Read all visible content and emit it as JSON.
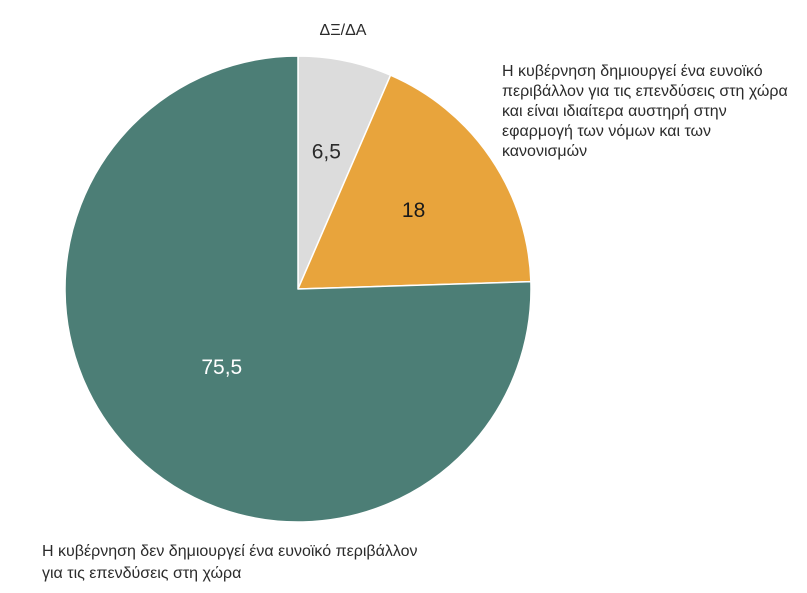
{
  "chart_data": {
    "type": "pie",
    "start_angle": "12 o'clock",
    "direction": "clockwise",
    "slices": [
      {
        "label": "ΔΞ/ΔΑ",
        "value": 6.5,
        "value_label": "6,5",
        "color": "#dcdcdc",
        "value_color": "#2b2b2b"
      },
      {
        "label": "Η κυβέρνηση δημιουργεί ένα ευνοϊκό περιβάλλον για τις επενδύσεις στη χώρα και είναι ιδιαίτερα αυστηρή στην εφαρμογή των νόμων και των κανονισμών",
        "label_lines": [
          "Η κυβέρνηση δημιουργεί ένα ευνοϊκό",
          "περιβάλλον για τις επενδύσεις στη χώρα",
          "και είναι ιδιαίτερα αυστηρή στην",
          "εφαρμογή των νόμων και των",
          "κανονισμών"
        ],
        "value": 18,
        "value_label": "18",
        "color": "#e8a43c",
        "value_color": "#1a1a1a"
      },
      {
        "label": "Η κυβέρνηση δεν δημιουργεί ένα ευνοϊκό περιβάλλον για τις επενδύσεις στη χώρα",
        "label_lines": [
          "Η κυβέρνηση δεν δημιουργεί ένα ευνοϊκό περιβάλλον",
          "για τις επενδύσεις στη χώρα"
        ],
        "value": 75.5,
        "value_label": "75,5",
        "color": "#4c7e76",
        "value_color": "#ffffff"
      }
    ]
  }
}
